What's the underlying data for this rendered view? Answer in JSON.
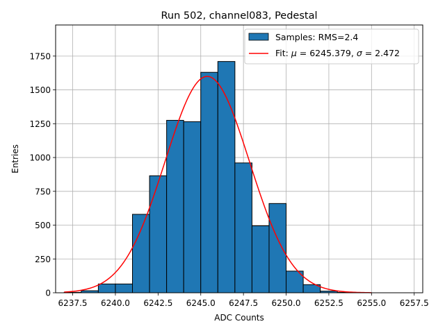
{
  "chart_data": {
    "type": "bar",
    "title": "Run 502, channel083, Pedestal",
    "xlabel": "ADC Counts",
    "ylabel": "Entries",
    "xlim": [
      6236.5,
      6258.0
    ],
    "ylim": [
      0,
      1980
    ],
    "grid": true,
    "bar_color": "#1f77b4",
    "fit_color": "#ff0000",
    "x_ticks": [
      6237.5,
      6240.0,
      6242.5,
      6245.0,
      6247.5,
      6250.0,
      6252.5,
      6255.0,
      6257.5
    ],
    "x_tick_labels": [
      "6237.5",
      "6240.0",
      "6242.5",
      "6245.0",
      "6247.5",
      "6250.0",
      "6252.5",
      "6255.0",
      "6257.5"
    ],
    "y_ticks": [
      0,
      250,
      500,
      750,
      1000,
      1250,
      1500,
      1750
    ],
    "y_tick_labels": [
      "0",
      "250",
      "500",
      "750",
      "1000",
      "1250",
      "1500",
      "1750"
    ],
    "bins": [
      {
        "x0": 6237.0,
        "x1": 6238.0,
        "value": 3
      },
      {
        "x0": 6238.0,
        "x1": 6239.0,
        "value": 15
      },
      {
        "x0": 6239.0,
        "x1": 6240.0,
        "value": 65
      },
      {
        "x0": 6240.0,
        "x1": 6241.0,
        "value": 65
      },
      {
        "x0": 6241.0,
        "x1": 6242.0,
        "value": 580
      },
      {
        "x0": 6242.0,
        "x1": 6243.0,
        "value": 865
      },
      {
        "x0": 6243.0,
        "x1": 6244.0,
        "value": 1275
      },
      {
        "x0": 6244.0,
        "x1": 6245.0,
        "value": 1265
      },
      {
        "x0": 6245.0,
        "x1": 6246.0,
        "value": 1630
      },
      {
        "x0": 6246.0,
        "x1": 6247.0,
        "value": 1710
      },
      {
        "x0": 6247.0,
        "x1": 6248.0,
        "value": 960
      },
      {
        "x0": 6248.0,
        "x1": 6249.0,
        "value": 495
      },
      {
        "x0": 6249.0,
        "x1": 6250.0,
        "value": 660
      },
      {
        "x0": 6250.0,
        "x1": 6251.0,
        "value": 160
      },
      {
        "x0": 6251.0,
        "x1": 6252.0,
        "value": 60
      },
      {
        "x0": 6252.0,
        "x1": 6253.0,
        "value": 12
      },
      {
        "x0": 6253.0,
        "x1": 6254.0,
        "value": 3
      }
    ],
    "fit": {
      "mu": 6245.379,
      "sigma": 2.472,
      "amplitude": 1600,
      "x_range": [
        6237.0,
        6255.0
      ]
    },
    "legend": {
      "placement": "upper right",
      "entries": [
        {
          "kind": "bar",
          "label": "Samples: RMS=2.4"
        },
        {
          "kind": "line",
          "label_prefix": "Fit: ",
          "mu_symbol": "μ",
          "mu_text": " = 6245.379, ",
          "sigma_symbol": "σ",
          "sigma_text": " = 2.472"
        }
      ]
    }
  }
}
